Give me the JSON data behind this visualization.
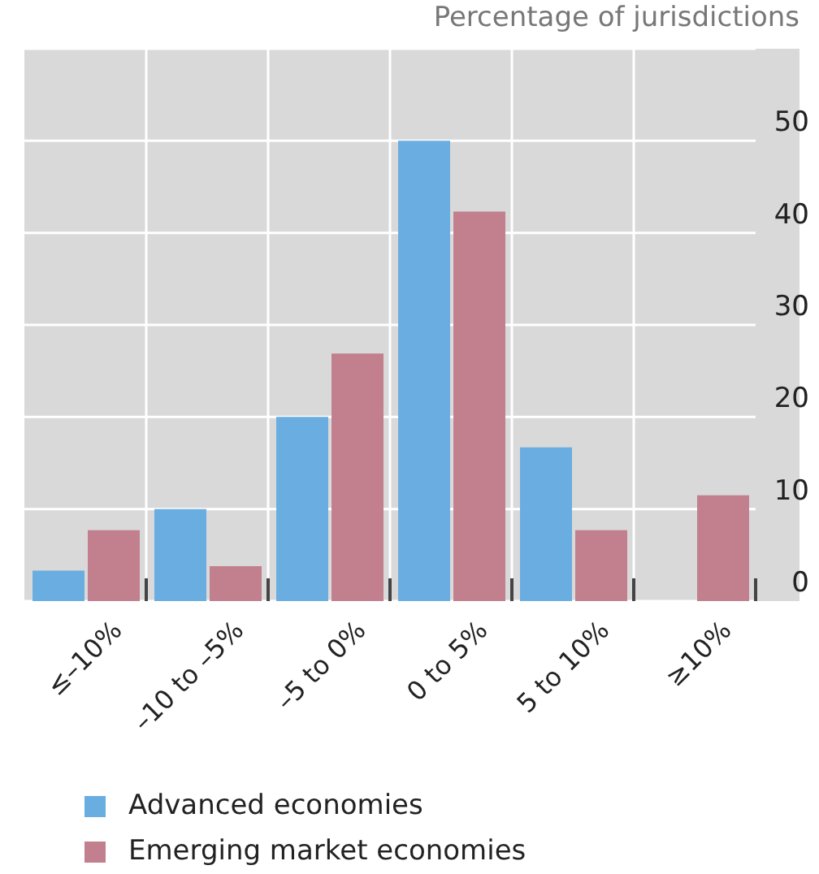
{
  "chart_data": {
    "type": "bar",
    "ylabel": "Percentage of jurisdictions",
    "categories": [
      "≤–10%",
      "–10 to –5%",
      "–5 to 0%",
      "0 to 5%",
      "5 to 10%",
      "≥10%"
    ],
    "series": [
      {
        "name": "Advanced economies",
        "color": "#6aade0",
        "values": [
          3.3,
          10,
          20,
          50,
          16.7,
          0
        ]
      },
      {
        "name": "Emerging market economies",
        "color": "#c27f8e",
        "values": [
          7.7,
          3.8,
          26.9,
          42.3,
          7.7,
          11.5
        ]
      }
    ],
    "ylim": [
      0,
      60
    ],
    "yticks": [
      0,
      10,
      20,
      30,
      40,
      50
    ],
    "grid": true,
    "legend": "bottom"
  }
}
